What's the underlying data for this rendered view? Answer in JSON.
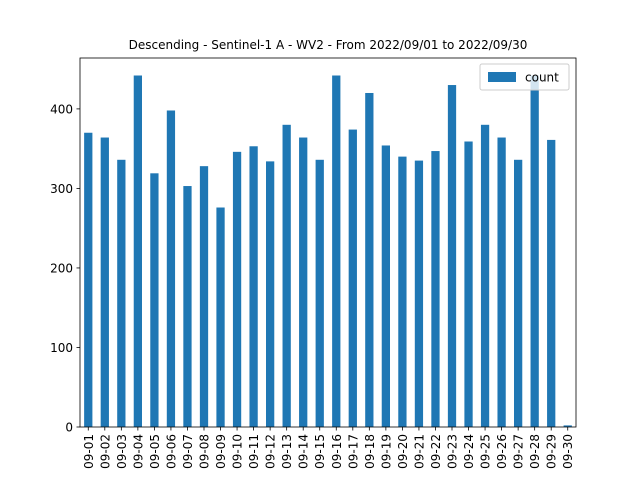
{
  "chart_data": {
    "type": "bar",
    "title": "Descending - Sentinel-1 A - WV2 - From 2022/09/01 to 2022/09/30",
    "xlabel": "",
    "ylabel": "",
    "categories": [
      "09-01",
      "09-02",
      "09-03",
      "09-04",
      "09-05",
      "09-06",
      "09-07",
      "09-08",
      "09-09",
      "09-10",
      "09-11",
      "09-12",
      "09-13",
      "09-14",
      "09-15",
      "09-16",
      "09-17",
      "09-18",
      "09-19",
      "09-20",
      "09-21",
      "09-22",
      "09-23",
      "09-24",
      "09-25",
      "09-26",
      "09-27",
      "09-28",
      "09-29",
      "09-30"
    ],
    "series": [
      {
        "name": "count",
        "color": "#1f77b4",
        "values": [
          370,
          364,
          336,
          442,
          319,
          398,
          303,
          328,
          276,
          346,
          353,
          334,
          380,
          364,
          336,
          442,
          374,
          420,
          354,
          340,
          335,
          347,
          430,
          359,
          380,
          364,
          336,
          442,
          361,
          2
        ]
      }
    ],
    "ylim": [
      0,
      464
    ],
    "yticks": [
      0,
      100,
      200,
      300,
      400
    ],
    "grid": false,
    "legend_position": "top-right"
  }
}
